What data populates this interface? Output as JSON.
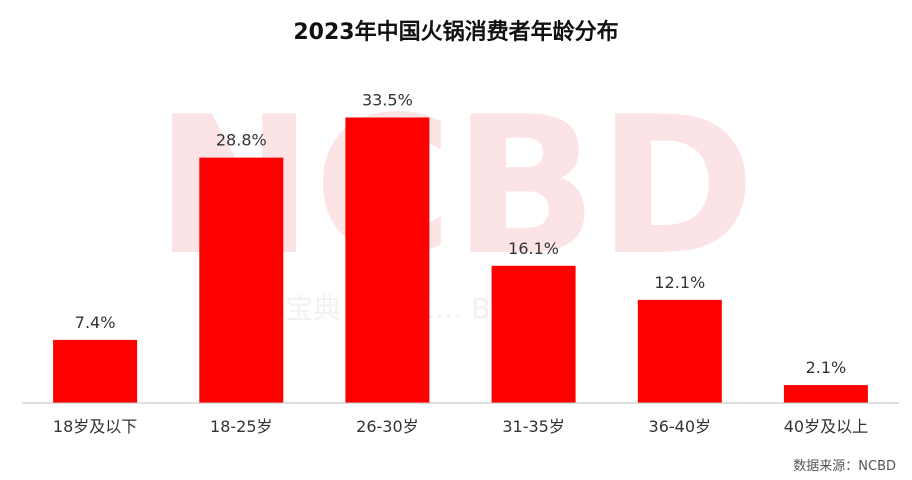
{
  "title": "2023年中国火锅消费者年龄分布",
  "source": "数据来源：NCBD",
  "watermark": {
    "big": "NCBD",
    "small": "宝典 … Cat… Big D…"
  },
  "colors": {
    "bar": "#ff0000",
    "axis": "#bfbfbf",
    "watermark": "#fbe3e6"
  },
  "chart_data": {
    "type": "bar",
    "title": "2023年中国火锅消费者年龄分布",
    "categories": [
      "18岁及以下",
      "18-25岁",
      "26-30岁",
      "31-35岁",
      "36-40岁",
      "40岁及以上"
    ],
    "values": [
      7.4,
      28.8,
      33.5,
      16.1,
      12.1,
      2.1
    ],
    "value_labels": [
      "7.4%",
      "28.8%",
      "33.5%",
      "16.1%",
      "12.1%",
      "2.1%"
    ],
    "xlabel": "",
    "ylabel": "",
    "ylim": [
      0,
      35
    ],
    "grid": false,
    "legend": "none"
  }
}
